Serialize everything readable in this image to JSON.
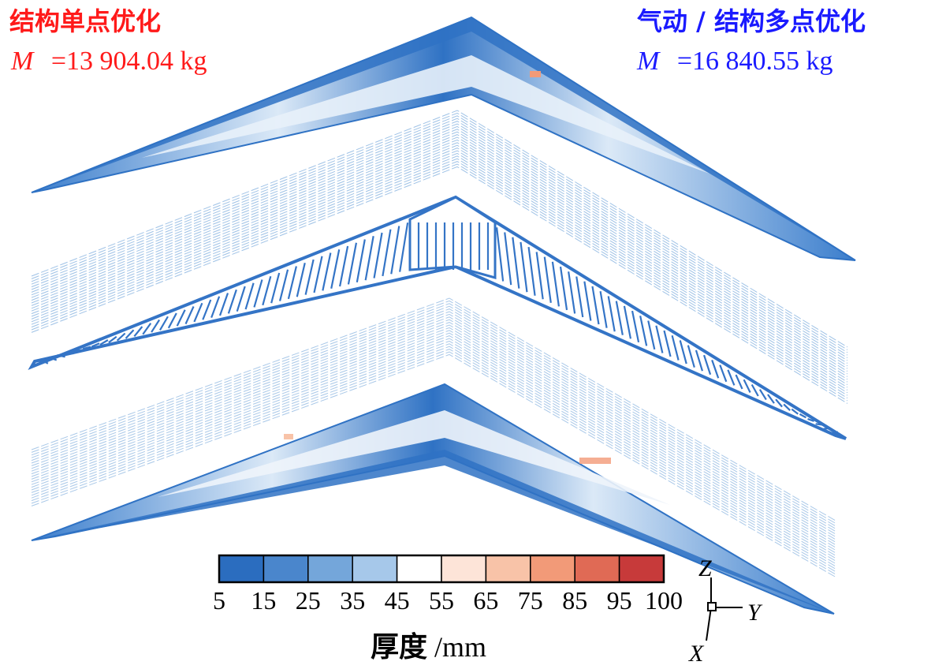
{
  "left_label": {
    "title": "结构单点优化",
    "mass_symbol": "M",
    "mass_value": "=13 904.04 kg",
    "color": "#ff1a1a"
  },
  "right_label": {
    "title": "气动 / 结构多点优化",
    "mass_symbol": "M",
    "mass_value": "=16 840.55 kg",
    "color": "#1a1aff"
  },
  "colorbar": {
    "ticks": [
      "5",
      "15",
      "25",
      "35",
      "45",
      "55",
      "65",
      "75",
      "85",
      "95",
      "100"
    ],
    "colors": [
      "#2b6dbf",
      "#4a86cc",
      "#74a6da",
      "#a6c8ea",
      "#ffffff",
      "#fde4d8",
      "#f8c3a8",
      "#f29a78",
      "#e06a55",
      "#c73a3a"
    ],
    "title": "厚度",
    "unit": "/mm"
  },
  "axes": {
    "z": "Z",
    "y": "Y",
    "x": "X"
  },
  "palette": {
    "wing_blue": "#2f72c4",
    "wing_light": "#dbe9f7",
    "rib_blue": "#3474c6"
  }
}
